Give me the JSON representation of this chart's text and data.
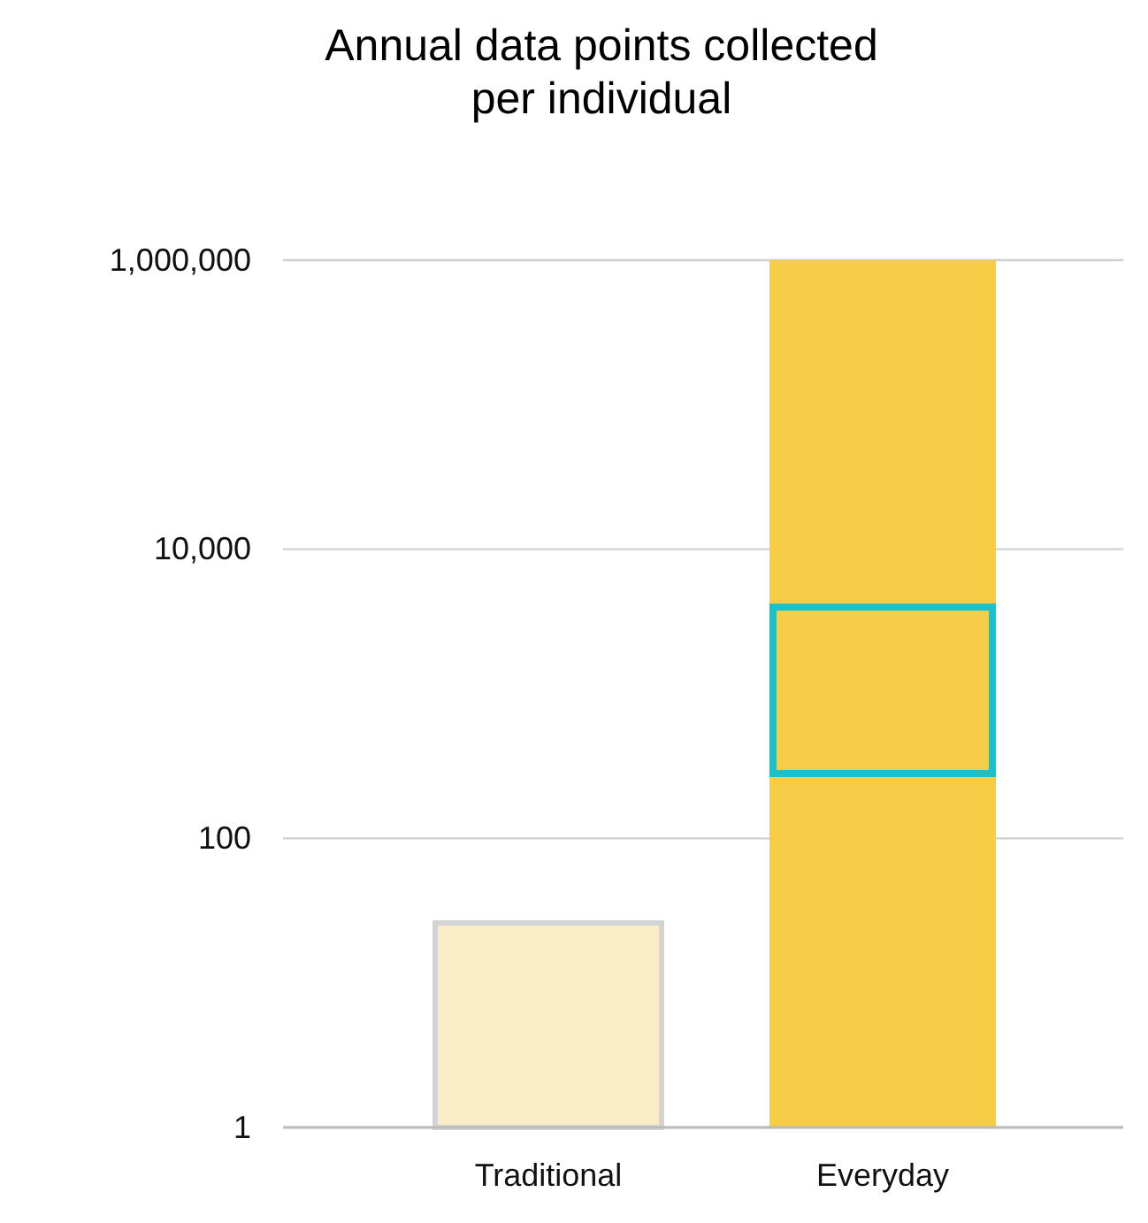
{
  "chart_data": {
    "type": "bar",
    "title": "Annual data points collected\nper individual",
    "categories": [
      "Traditional",
      "Everyday"
    ],
    "values": [
      26,
      1000000
    ],
    "colors": [
      "#faedc6",
      "#f5cd47"
    ],
    "log": true,
    "ylim": [
      1,
      1000000
    ],
    "yticks": [
      {
        "value": 1,
        "label": "1"
      },
      {
        "value": 100,
        "label": "100"
      },
      {
        "value": 10000,
        "label": "10,000"
      },
      {
        "value": 1000000,
        "label": "1,000,000"
      }
    ],
    "grid": "y"
  }
}
